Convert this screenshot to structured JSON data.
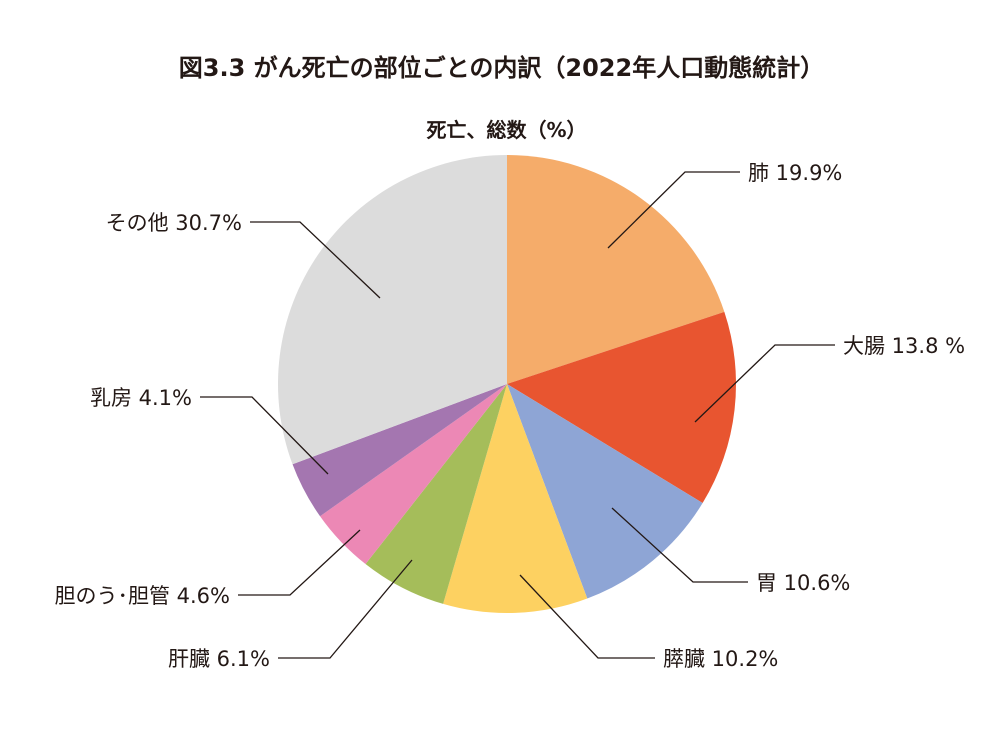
{
  "title": "図3.3 がん死亡の部位ごとの内訳（2022年人口動態統計）",
  "subtitle": "死亡、総数（%）",
  "chart_data": {
    "type": "pie",
    "title": "図3.3 がん死亡の部位ごとの内訳（2022年人口動態統計）",
    "subtitle": "死亡、総数（%）",
    "unit": "%",
    "slices": [
      {
        "name": "肺",
        "value": 19.9,
        "label": "肺 19.9%",
        "color": "#F5AC6A"
      },
      {
        "name": "大腸",
        "value": 13.8,
        "label": "大腸 13.8 %",
        "color": "#E85530"
      },
      {
        "name": "胃",
        "value": 10.6,
        "label": "胃 10.6%",
        "color": "#8EA5D5"
      },
      {
        "name": "膵臓",
        "value": 10.2,
        "label": "膵臓 10.2%",
        "color": "#FDD161"
      },
      {
        "name": "肝臓",
        "value": 6.1,
        "label": "肝臓 6.1%",
        "color": "#A5BD5A"
      },
      {
        "name": "胆のう・胆管",
        "value": 4.6,
        "label": "胆のう･胆管 4.6%",
        "color": "#EC88B5"
      },
      {
        "name": "乳房",
        "value": 4.1,
        "label": "乳房 4.1%",
        "color": "#A476B0"
      },
      {
        "name": "その他",
        "value": 30.7,
        "label": "その他 30.7%",
        "color": "#DCDCDC"
      }
    ]
  }
}
